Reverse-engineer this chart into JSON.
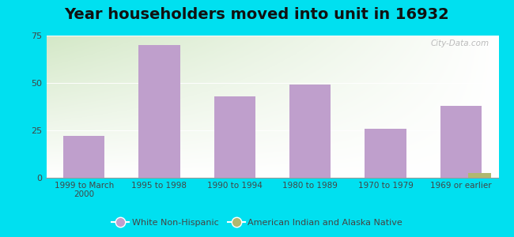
{
  "title": "Year householders moved into unit in 16932",
  "categories": [
    "1999 to March\n2000",
    "1995 to 1998",
    "1990 to 1994",
    "1980 to 1989",
    "1970 to 1979",
    "1969 or earlier"
  ],
  "white_non_hispanic": [
    22,
    70,
    43,
    49,
    26,
    38
  ],
  "american_indian": [
    0,
    0,
    0,
    0,
    0,
    2.5
  ],
  "bar_color_white": "#bf9fcc",
  "bar_color_indian": "#b0b870",
  "ylim": [
    0,
    75
  ],
  "yticks": [
    0,
    25,
    50,
    75
  ],
  "background_outer": "#00e0f0",
  "watermark": "City-Data.com",
  "legend_white": "White Non-Hispanic",
  "legend_indian": "American Indian and Alaska Native",
  "title_fontsize": 14,
  "bar_width": 0.55
}
